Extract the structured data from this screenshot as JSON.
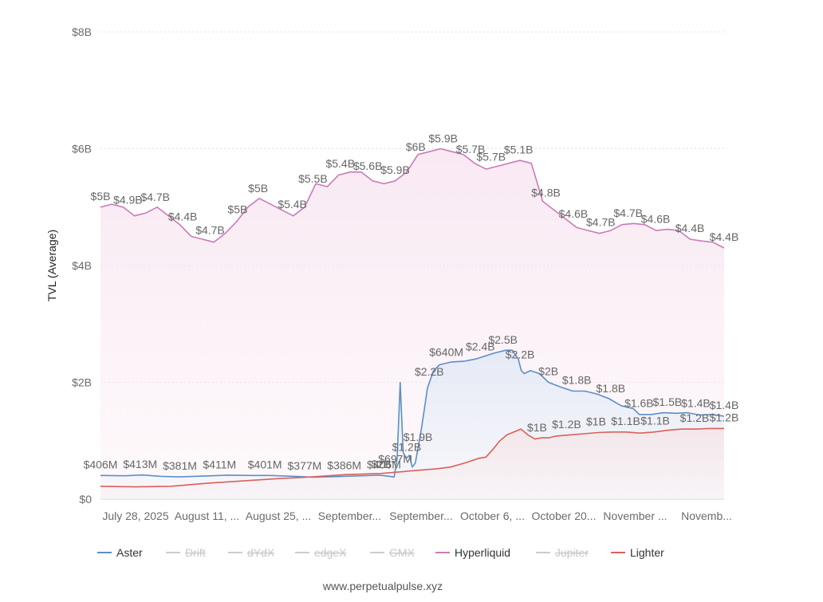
{
  "chart_data": {
    "type": "area",
    "ylabel": "TVL (Average)",
    "ylim": [
      0,
      8
    ],
    "y_unit": "billions USD",
    "y_ticks": [
      "$0",
      "$2B",
      "$4B",
      "$6B",
      "$8B"
    ],
    "grid": true,
    "legend_position": "bottom",
    "x_tick_labels": [
      "July 28, 2025",
      "August 11, ...",
      "August 25, ...",
      "September...",
      "September...",
      "October 6, ...",
      "October 20...",
      "November ...",
      "Novemb..."
    ],
    "n_points": 127,
    "series": [
      {
        "name": "Aster",
        "color": "#5b8fc9",
        "visible": true,
        "points": [
          [
            0,
            0.406
          ],
          [
            8,
            0.4
          ],
          [
            14,
            0.413
          ],
          [
            20,
            0.39
          ],
          [
            26,
            0.381
          ],
          [
            34,
            0.395
          ],
          [
            42,
            0.411
          ],
          [
            50,
            0.405
          ],
          [
            56,
            0.405
          ],
          [
            58,
            0.401
          ],
          [
            64,
            0.39
          ],
          [
            70,
            0.377
          ],
          [
            78,
            0.386
          ],
          [
            86,
            0.4
          ],
          [
            92,
            0.41
          ],
          [
            94,
            0.4
          ],
          [
            97,
            0.38
          ],
          [
            98,
            0.697
          ],
          [
            99,
            2.0
          ],
          [
            100,
            0.8
          ],
          [
            101,
            0.7
          ],
          [
            102,
            0.75
          ],
          [
            103,
            0.55
          ],
          [
            104,
            0.62
          ],
          [
            106,
            1.2
          ],
          [
            108,
            1.9
          ],
          [
            110,
            2.2
          ],
          [
            112,
            2.3
          ],
          [
            116,
            2.35
          ],
          [
            120,
            2.36
          ],
          [
            124,
            2.4
          ],
          [
            130,
            2.5
          ],
          [
            134,
            2.55
          ],
          [
            136,
            2.55
          ],
          [
            138,
            2.4
          ],
          [
            139,
            2.2
          ],
          [
            140,
            2.15
          ],
          [
            142,
            2.2
          ],
          [
            145,
            2.15
          ],
          [
            148,
            2.0
          ],
          [
            152,
            1.92
          ],
          [
            156,
            1.85
          ],
          [
            160,
            1.85
          ],
          [
            164,
            1.8
          ],
          [
            168,
            1.72
          ],
          [
            172,
            1.6
          ],
          [
            176,
            1.55
          ],
          [
            178,
            1.45
          ],
          [
            182,
            1.45
          ],
          [
            186,
            1.48
          ],
          [
            190,
            1.47
          ],
          [
            194,
            1.48
          ],
          [
            198,
            1.44
          ],
          [
            202,
            1.45
          ],
          [
            206,
            1.42
          ]
        ],
        "labels": [
          [
            0,
            "$406M"
          ],
          [
            14,
            "$413M"
          ],
          [
            28,
            "$381M"
          ],
          [
            42,
            "$411M"
          ],
          [
            58,
            "$401M"
          ],
          [
            72,
            "$377M"
          ],
          [
            86,
            "$386M"
          ],
          [
            100,
            "$406M"
          ],
          [
            99,
            "$2B"
          ],
          [
            104,
            "$697M"
          ],
          [
            108,
            "$1.2B"
          ],
          [
            112,
            "$1.9B"
          ],
          [
            116,
            "$2.2B"
          ],
          [
            122,
            "$640M"
          ],
          [
            134,
            "$2.4B"
          ],
          [
            142,
            "$2.5B"
          ],
          [
            148,
            "$2.2B"
          ],
          [
            158,
            "$2B"
          ],
          [
            168,
            "$1.8B"
          ],
          [
            180,
            "$1.8B"
          ],
          [
            190,
            "$1.6B"
          ],
          [
            200,
            "$1.5B"
          ],
          [
            210,
            "$1.4B"
          ],
          [
            220,
            "$1.4B"
          ]
        ]
      },
      {
        "name": "Hyperliquid",
        "color": "#c97ab8",
        "visible": true,
        "points": [
          [
            0,
            5.0
          ],
          [
            2,
            5.05
          ],
          [
            4,
            5.0
          ],
          [
            6,
            4.85
          ],
          [
            8,
            4.9
          ],
          [
            10,
            5.0
          ],
          [
            12,
            4.85
          ],
          [
            14,
            4.7
          ],
          [
            16,
            4.5
          ],
          [
            18,
            4.45
          ],
          [
            20,
            4.4
          ],
          [
            22,
            4.55
          ],
          [
            24,
            4.75
          ],
          [
            26,
            5.0
          ],
          [
            28,
            5.15
          ],
          [
            30,
            5.05
          ],
          [
            32,
            4.95
          ],
          [
            34,
            4.85
          ],
          [
            36,
            5.0
          ],
          [
            38,
            5.4
          ],
          [
            40,
            5.35
          ],
          [
            42,
            5.55
          ],
          [
            44,
            5.6
          ],
          [
            46,
            5.6
          ],
          [
            48,
            5.45
          ],
          [
            50,
            5.4
          ],
          [
            52,
            5.45
          ],
          [
            54,
            5.6
          ],
          [
            56,
            5.9
          ],
          [
            58,
            5.95
          ],
          [
            60,
            6.0
          ],
          [
            62,
            5.95
          ],
          [
            64,
            5.9
          ],
          [
            66,
            5.75
          ],
          [
            68,
            5.65
          ],
          [
            70,
            5.7
          ],
          [
            72,
            5.75
          ],
          [
            74,
            5.8
          ],
          [
            76,
            5.75
          ],
          [
            78,
            5.1
          ],
          [
            80,
            4.95
          ],
          [
            82,
            4.8
          ],
          [
            84,
            4.65
          ],
          [
            86,
            4.6
          ],
          [
            88,
            4.55
          ],
          [
            90,
            4.6
          ],
          [
            92,
            4.7
          ],
          [
            94,
            4.72
          ],
          [
            96,
            4.7
          ],
          [
            98,
            4.6
          ],
          [
            100,
            4.62
          ],
          [
            102,
            4.6
          ],
          [
            104,
            4.45
          ],
          [
            106,
            4.42
          ],
          [
            108,
            4.4
          ],
          [
            110,
            4.3
          ]
        ],
        "labels": [
          [
            0,
            "$5B"
          ],
          [
            8,
            "$4.9B"
          ],
          [
            16,
            "$4.7B"
          ],
          [
            24,
            "$4.4B"
          ],
          [
            32,
            "$4.7B"
          ],
          [
            40,
            "$5B"
          ],
          [
            46,
            "$5B"
          ],
          [
            56,
            "$5.4B"
          ],
          [
            62,
            "$5.5B"
          ],
          [
            70,
            "$5.4B"
          ],
          [
            78,
            "$5.6B"
          ],
          [
            86,
            "$5.9B"
          ],
          [
            92,
            "$6B"
          ],
          [
            100,
            "$5.9B"
          ],
          [
            108,
            "$5.7B"
          ],
          [
            114,
            "$5.7B"
          ],
          [
            122,
            "$5.1B"
          ],
          [
            130,
            "$4.8B"
          ],
          [
            138,
            "$4.6B"
          ],
          [
            146,
            "$4.7B"
          ],
          [
            154,
            "$4.7B"
          ],
          [
            162,
            "$4.6B"
          ],
          [
            172,
            "$4.4B"
          ],
          [
            182,
            "$4.4B"
          ]
        ]
      },
      {
        "name": "Lighter",
        "color": "#d9605a",
        "visible": true,
        "points": [
          [
            0,
            0.22
          ],
          [
            10,
            0.21
          ],
          [
            20,
            0.22
          ],
          [
            30,
            0.27
          ],
          [
            40,
            0.31
          ],
          [
            50,
            0.35
          ],
          [
            60,
            0.38
          ],
          [
            70,
            0.42
          ],
          [
            80,
            0.44
          ],
          [
            90,
            0.49
          ],
          [
            96,
            0.52
          ],
          [
            100,
            0.55
          ],
          [
            104,
            0.62
          ],
          [
            108,
            0.7
          ],
          [
            110,
            0.72
          ],
          [
            112,
            0.85
          ],
          [
            114,
            1.0
          ],
          [
            116,
            1.1
          ],
          [
            118,
            1.15
          ],
          [
            120,
            1.2
          ],
          [
            122,
            1.1
          ],
          [
            124,
            1.03
          ],
          [
            126,
            1.05
          ],
          [
            128,
            1.05
          ],
          [
            130,
            1.08
          ],
          [
            134,
            1.1
          ],
          [
            138,
            1.12
          ],
          [
            142,
            1.14
          ],
          [
            146,
            1.15
          ],
          [
            150,
            1.15
          ],
          [
            154,
            1.13
          ],
          [
            158,
            1.15
          ],
          [
            162,
            1.18
          ],
          [
            166,
            1.2
          ],
          [
            170,
            1.2
          ],
          [
            174,
            1.21
          ],
          [
            178,
            1.21
          ]
        ],
        "labels": [
          [
            120,
            "$1B"
          ],
          [
            126,
            "$1.2B"
          ],
          [
            132,
            "$1B"
          ],
          [
            138,
            "$1.1B"
          ],
          [
            144,
            "$1.1B"
          ],
          [
            152,
            "$1.2B"
          ],
          [
            158,
            "$1.2B"
          ]
        ]
      },
      {
        "name": "Drift",
        "color": "#cccccc",
        "visible": false
      },
      {
        "name": "dYdX",
        "color": "#cccccc",
        "visible": false
      },
      {
        "name": "edgeX",
        "color": "#cccccc",
        "visible": false
      },
      {
        "name": "GMX",
        "color": "#cccccc",
        "visible": false
      },
      {
        "name": "Jupiter",
        "color": "#cccccc",
        "visible": false
      }
    ],
    "legend": [
      {
        "name": "Aster",
        "color": "#5b8fc9",
        "visible": true
      },
      {
        "name": "Drift",
        "color": "#cccccc",
        "visible": false
      },
      {
        "name": "dYdX",
        "color": "#cccccc",
        "visible": false
      },
      {
        "name": "edgeX",
        "color": "#cccccc",
        "visible": false
      },
      {
        "name": "GMX",
        "color": "#cccccc",
        "visible": false
      },
      {
        "name": "Hyperliquid",
        "color": "#c97ab8",
        "visible": true
      },
      {
        "name": "Jupiter",
        "color": "#cccccc",
        "visible": false
      },
      {
        "name": "Lighter",
        "color": "#d9605a",
        "visible": true
      }
    ]
  },
  "footer": {
    "credit": "www.perpetualpulse.xyz"
  }
}
